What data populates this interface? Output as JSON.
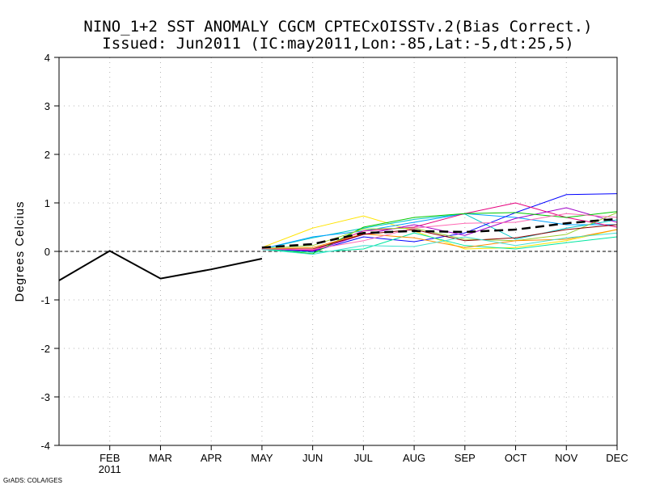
{
  "chart_data": {
    "type": "line",
    "title": "NINO_1+2 SST ANOMALY CGCM CPTECxOISSTv.2(Bias Correct.)",
    "subtitle": "Issued:  Jun2011 (IC:may2011,Lon:-85,Lat:-5,dt:25,5)",
    "xlabel": "",
    "ylabel": "Degrees Celcius",
    "credit": "GrADS: COLA/IGES",
    "x_tick_labels": [
      "FEB",
      "MAR",
      "APR",
      "MAY",
      "JUN",
      "JUL",
      "AUG",
      "SEP",
      "OCT",
      "NOV",
      "DEC"
    ],
    "x_tick_positions": [
      1,
      2,
      3,
      4,
      5,
      6,
      7,
      8,
      9,
      10,
      11
    ],
    "x_year_label": "2011",
    "xlim": [
      0,
      11
    ],
    "ylim": [
      -4,
      4
    ],
    "y_ticks": [
      -4,
      -3,
      -2,
      -1,
      0,
      1,
      2,
      3,
      4
    ],
    "grid": true,
    "zero_line": true,
    "observed": {
      "name": "Observed",
      "color": "#000000",
      "x": [
        0,
        1,
        2,
        3,
        4
      ],
      "values": [
        -0.6,
        0.01,
        -0.56,
        -0.37,
        -0.15
      ]
    },
    "ensemble_mean": {
      "name": "Ensemble mean",
      "color": "#000000",
      "x": [
        4,
        5,
        6,
        7,
        8,
        9,
        10,
        11
      ],
      "values": [
        0.08,
        0.15,
        0.38,
        0.42,
        0.4,
        0.45,
        0.58,
        0.67
      ]
    },
    "members": [
      {
        "name": "member-1",
        "color": "#ffe400",
        "x": [
          4,
          5,
          6,
          7,
          8,
          9,
          10,
          11
        ],
        "values": [
          0.08,
          0.48,
          0.73,
          0.42,
          0.05,
          0.08,
          0.22,
          0.45
        ]
      },
      {
        "name": "member-2",
        "color": "#00c8c8",
        "x": [
          4,
          5,
          6,
          7,
          8,
          9,
          10,
          11
        ],
        "values": [
          0.05,
          0.28,
          0.48,
          0.66,
          0.77,
          0.25,
          0.48,
          0.65
        ]
      },
      {
        "name": "member-3",
        "color": "#00a0ff",
        "x": [
          4,
          5,
          6,
          7,
          8,
          9,
          10,
          11
        ],
        "values": [
          0.05,
          0.3,
          0.42,
          0.6,
          0.78,
          0.7,
          0.55,
          0.55
        ]
      },
      {
        "name": "member-4",
        "color": "#0000ff",
        "x": [
          4,
          5,
          6,
          7,
          8,
          9,
          10,
          11
        ],
        "values": [
          0.05,
          0.0,
          0.3,
          0.2,
          0.38,
          0.8,
          1.17,
          1.19
        ]
      },
      {
        "name": "member-5",
        "color": "#e6007e",
        "x": [
          4,
          5,
          6,
          7,
          8,
          9,
          10,
          11
        ],
        "values": [
          0.05,
          0.02,
          0.42,
          0.5,
          0.78,
          1.0,
          0.7,
          0.5
        ]
      },
      {
        "name": "member-6",
        "color": "#a000c8",
        "x": [
          4,
          5,
          6,
          7,
          8,
          9,
          10,
          11
        ],
        "values": [
          0.06,
          0.01,
          0.35,
          0.55,
          0.33,
          0.68,
          0.9,
          0.6
        ]
      },
      {
        "name": "member-7",
        "color": "#00c800",
        "x": [
          4,
          5,
          6,
          7,
          8,
          9,
          10,
          11
        ],
        "values": [
          0.06,
          -0.05,
          0.5,
          0.7,
          0.78,
          0.8,
          0.7,
          0.82
        ]
      },
      {
        "name": "member-8",
        "color": "#9acd32",
        "x": [
          4,
          5,
          6,
          7,
          8,
          9,
          10,
          11
        ],
        "values": [
          0.06,
          0.12,
          0.46,
          0.48,
          0.25,
          0.22,
          0.35,
          0.8
        ]
      },
      {
        "name": "member-9",
        "color": "#00e6a0",
        "x": [
          4,
          5,
          6,
          7,
          8,
          9,
          10,
          11
        ],
        "values": [
          0.04,
          -0.02,
          0.05,
          0.38,
          0.12,
          0.05,
          0.18,
          0.3
        ]
      },
      {
        "name": "member-10",
        "color": "#ff8c00",
        "x": [
          4,
          5,
          6,
          7,
          8,
          9,
          10,
          11
        ],
        "values": [
          0.05,
          0.08,
          0.36,
          0.28,
          0.08,
          0.22,
          0.25,
          0.45
        ]
      },
      {
        "name": "member-11",
        "color": "#8b0000",
        "x": [
          4,
          5,
          6,
          7,
          8,
          9,
          10,
          11
        ],
        "values": [
          0.05,
          0.05,
          0.35,
          0.45,
          0.22,
          0.28,
          0.45,
          0.55
        ]
      },
      {
        "name": "member-12",
        "color": "#40e0d0",
        "x": [
          4,
          5,
          6,
          7,
          8,
          9,
          10,
          11
        ],
        "values": [
          0.04,
          -0.06,
          0.12,
          0.1,
          0.3,
          0.12,
          0.28,
          0.38
        ]
      },
      {
        "name": "member-13",
        "color": "#ff69b4",
        "x": [
          4,
          5,
          6,
          7,
          8,
          9,
          10,
          11
        ],
        "values": [
          0.05,
          0.04,
          0.22,
          0.48,
          0.58,
          0.6,
          0.78,
          0.7
        ]
      }
    ]
  }
}
